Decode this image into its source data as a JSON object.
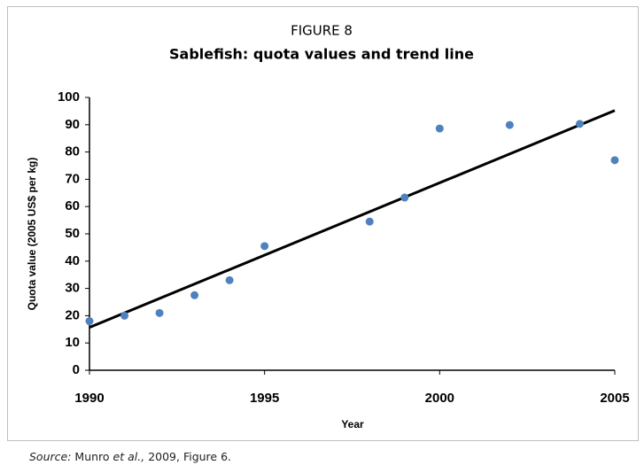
{
  "chart_data": {
    "type": "scatter",
    "title": "FIGURE 8",
    "subtitle": "Sablefish: quota values and trend line",
    "x_label": "Year",
    "y_label": "Quota value (2005 US$ per kg)",
    "x": [
      1990,
      1991,
      1992,
      1993,
      1994,
      1995,
      1998,
      1999,
      2000,
      2002,
      2004,
      2005
    ],
    "values": [
      18,
      20,
      21,
      27.5,
      33,
      45.5,
      54.5,
      63.3,
      88.6,
      89.9,
      90.3,
      77
    ],
    "color": "#4f81bd",
    "trend": {
      "x": [
        1990,
        2005
      ],
      "values": [
        15.7,
        95.2
      ],
      "color": "#000000"
    },
    "xlim": [
      1990,
      2005
    ],
    "xticks": [
      1990,
      1995,
      2000,
      2005
    ],
    "ylim": [
      0,
      100
    ],
    "yticks": [
      0,
      10,
      20,
      30,
      40,
      50,
      60,
      70,
      80,
      90,
      100
    ]
  },
  "source": {
    "label": "Source:",
    "author": "Munro",
    "etal": "et al.,",
    "rest": "2009, Figure 6."
  }
}
